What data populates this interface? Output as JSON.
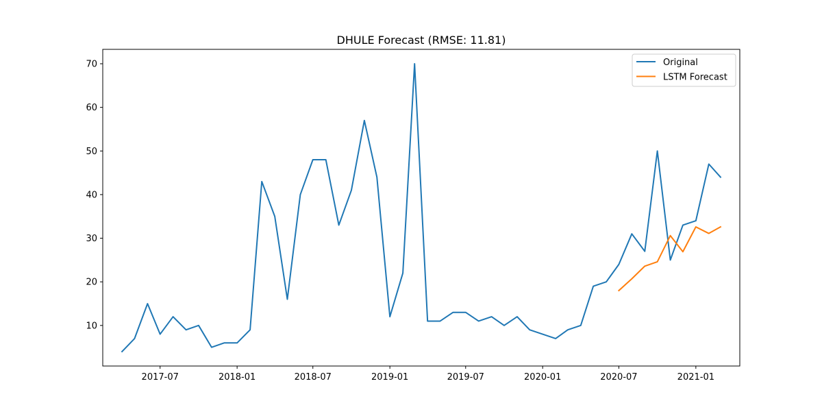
{
  "chart_data": {
    "type": "line",
    "title": "DHULE Forecast (RMSE: 11.81)",
    "xlabel": "",
    "ylabel": "",
    "x_ticks": [
      "2017-07",
      "2018-01",
      "2018-07",
      "2019-01",
      "2019-07",
      "2020-01",
      "2020-07",
      "2021-01"
    ],
    "y_ticks": [
      10,
      20,
      30,
      40,
      50,
      60,
      70
    ],
    "xlim": [
      "2017-02-14",
      "2021-04-16"
    ],
    "ylim": [
      0.7,
      73.3
    ],
    "grid": false,
    "legend_position": "top-right",
    "series": [
      {
        "name": "Original",
        "color": "#1f77b4",
        "x": [
          "2017-04-01",
          "2017-05-01",
          "2017-06-01",
          "2017-07-01",
          "2017-08-01",
          "2017-09-01",
          "2017-10-01",
          "2017-11-01",
          "2017-12-01",
          "2018-01-01",
          "2018-02-01",
          "2018-03-01",
          "2018-04-01",
          "2018-05-01",
          "2018-06-01",
          "2018-07-01",
          "2018-08-01",
          "2018-09-01",
          "2018-10-01",
          "2018-11-01",
          "2018-12-01",
          "2019-01-01",
          "2019-02-01",
          "2019-03-01",
          "2019-04-01",
          "2019-05-01",
          "2019-06-01",
          "2019-07-01",
          "2019-08-01",
          "2019-09-01",
          "2019-10-01",
          "2019-11-01",
          "2019-12-01",
          "2020-01-01",
          "2020-02-01",
          "2020-03-01",
          "2020-04-01",
          "2020-05-01",
          "2020-06-01",
          "2020-07-01",
          "2020-08-01",
          "2020-09-01",
          "2020-10-01",
          "2020-11-01",
          "2020-12-01",
          "2021-01-01",
          "2021-02-01",
          "2021-03-01"
        ],
        "y": [
          4,
          7,
          15,
          8,
          12,
          9,
          10,
          5,
          6,
          6,
          9,
          43,
          35,
          16,
          40,
          48,
          48,
          33,
          41,
          57,
          44,
          12,
          22,
          70,
          11,
          11,
          13,
          13,
          11,
          12,
          10,
          12,
          9,
          8,
          7,
          9,
          10,
          19,
          20,
          24,
          31,
          27,
          50,
          25,
          33,
          34,
          47,
          44
        ]
      },
      {
        "name": "LSTM Forecast",
        "color": "#ff7f0e",
        "x": [
          "2020-07-01",
          "2020-08-01",
          "2020-09-01",
          "2020-10-01",
          "2020-11-01",
          "2020-12-01",
          "2021-01-01",
          "2021-02-01",
          "2021-03-01"
        ],
        "y": [
          18,
          20.7,
          23.6,
          24.6,
          30.6,
          26.9,
          32.6,
          31.1,
          32.6
        ]
      }
    ]
  }
}
